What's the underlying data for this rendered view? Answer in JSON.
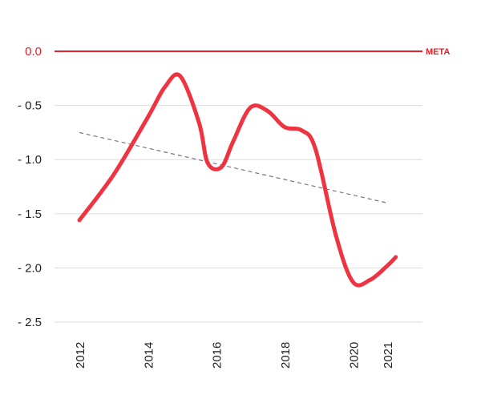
{
  "chart_data": {
    "type": "line",
    "title": "",
    "xlabel": "",
    "ylabel": "",
    "xlim": [
      2012,
      2021
    ],
    "ylim": [
      -2.5,
      0
    ],
    "x_ticks": [
      2012,
      2014,
      2016,
      2018,
      2020,
      2021
    ],
    "x_tick_labels": [
      "2012",
      "2014",
      "2016",
      "2018",
      "2020",
      "2021"
    ],
    "y_ticks": [
      0,
      -0.5,
      -1,
      -1.5,
      -2,
      -2.5
    ],
    "y_tick_labels": [
      "0.0",
      "- 0.5",
      "- 1.0",
      "- 1.5",
      "- 2.0",
      "- 2.5"
    ],
    "grid": "horizontal",
    "series": [
      {
        "color": "#ef3340",
        "smooth": true,
        "points": [
          {
            "x": 2012.0,
            "y": -1.56
          },
          {
            "x": 2013.0,
            "y": -1.14
          },
          {
            "x": 2014.0,
            "y": -0.61
          },
          {
            "x": 2014.5,
            "y": -0.33
          },
          {
            "x": 2014.95,
            "y": -0.23
          },
          {
            "x": 2015.5,
            "y": -0.66
          },
          {
            "x": 2015.75,
            "y": -1.03
          },
          {
            "x": 2016.15,
            "y": -1.07
          },
          {
            "x": 2016.5,
            "y": -0.83
          },
          {
            "x": 2017.0,
            "y": -0.52
          },
          {
            "x": 2017.5,
            "y": -0.55
          },
          {
            "x": 2018.0,
            "y": -0.7
          },
          {
            "x": 2018.5,
            "y": -0.73
          },
          {
            "x": 2018.9,
            "y": -0.9
          },
          {
            "x": 2019.5,
            "y": -1.7
          },
          {
            "x": 2020.0,
            "y": -2.13
          },
          {
            "x": 2020.5,
            "y": -2.11
          },
          {
            "x": 2021.0,
            "y": -1.98
          },
          {
            "x": 2021.25,
            "y": -1.9
          }
        ]
      },
      {
        "color": "#777777",
        "dashed": true,
        "points": [
          {
            "x": 2012.0,
            "y": -0.75
          },
          {
            "x": 2021.0,
            "y": -1.4
          }
        ]
      }
    ],
    "reference_line": {
      "y": 0,
      "label": "META",
      "color": "#e8202a"
    }
  }
}
